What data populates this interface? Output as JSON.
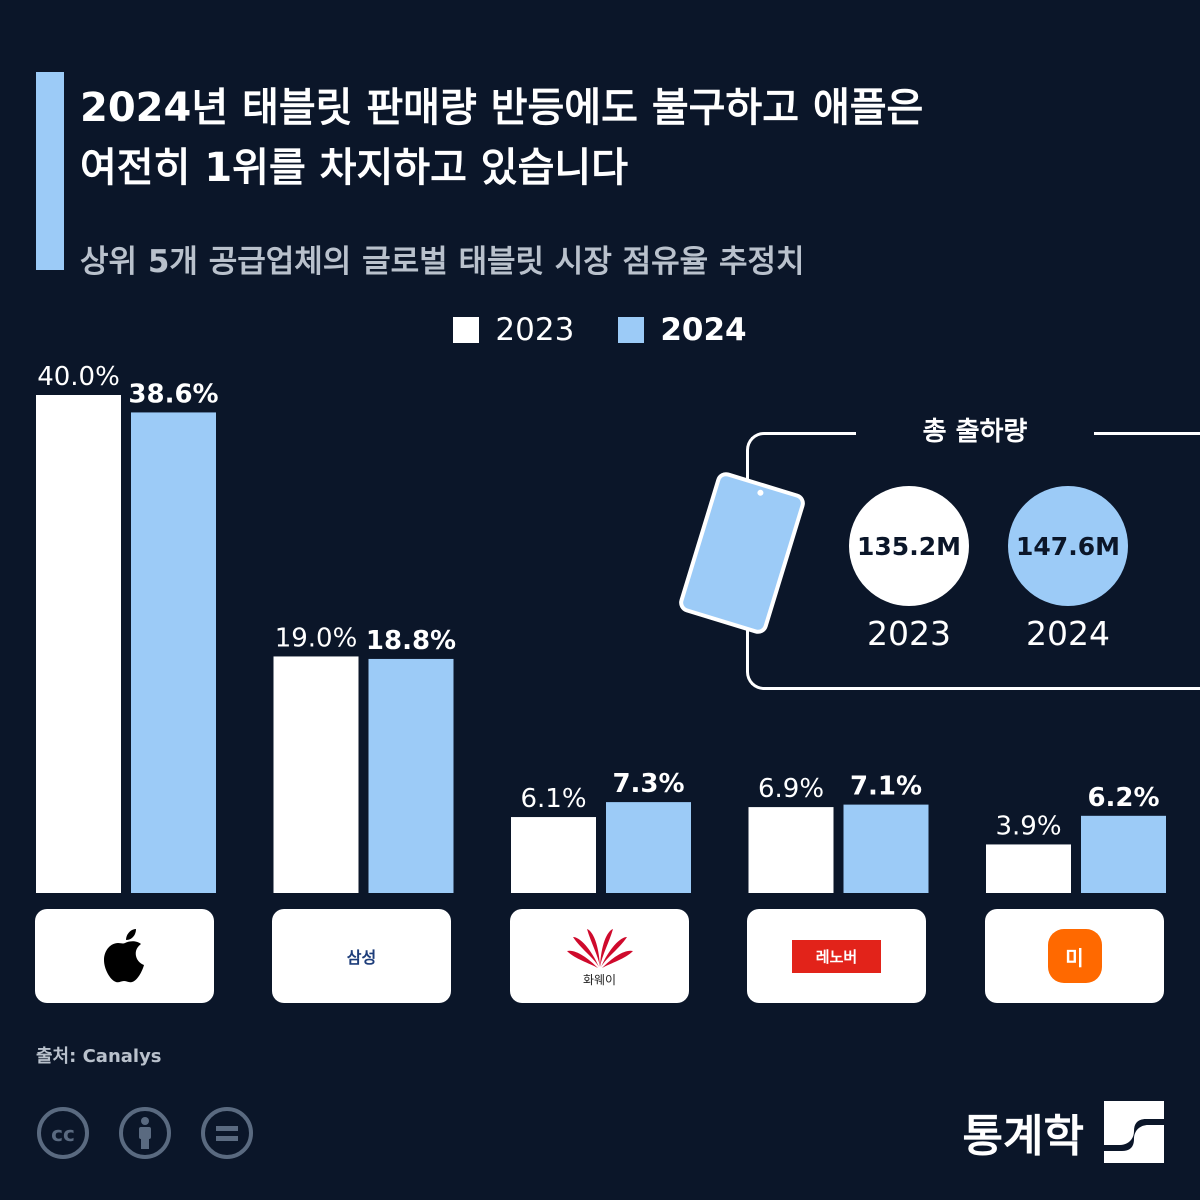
{
  "header": {
    "title_line1": "2024년 태블릿 판매량 반등에도 불구하고 애플은",
    "title_line2": "여전히 1위를 차지하고 있습니다",
    "subtitle": "상위 5개 공급업체의 글로벌 태블릿 시장 점유율 추정치"
  },
  "colors": {
    "background": "#0b1629",
    "series_2023": "#ffffff",
    "series_2024": "#9ccbf7"
  },
  "chart_data": {
    "type": "bar",
    "categories": [
      "애플",
      "삼성",
      "화웨이",
      "레노버",
      "미"
    ],
    "series": [
      {
        "name": "2023",
        "values": [
          40.0,
          19.0,
          6.1,
          6.9,
          3.9
        ],
        "labels": [
          "40.0%",
          "19.0%",
          "6.1%",
          "6.9%",
          "3.9%"
        ]
      },
      {
        "name": "2024",
        "values": [
          38.6,
          18.8,
          7.3,
          7.1,
          6.2
        ],
        "labels": [
          "38.6%",
          "18.8%",
          "7.3%",
          "7.1%",
          "6.2%"
        ]
      }
    ],
    "ylim": [
      0,
      40
    ],
    "grid": false,
    "legend_position": "top-center"
  },
  "logos": {
    "apple_icon": "apple-icon",
    "samsung_text": "삼성",
    "huawei_text": "화웨이",
    "lenovo_text": "레노버",
    "xiaomi_text": "미"
  },
  "shipments": {
    "title": "총 출하량",
    "items": [
      {
        "year": "2023",
        "value": "135.2M"
      },
      {
        "year": "2024",
        "value": "147.6M"
      }
    ]
  },
  "footer": {
    "source": "출처: Canalys",
    "license_icons": [
      "cc-icon",
      "attribution-icon",
      "no-derivatives-icon"
    ],
    "brand": "통계학"
  }
}
